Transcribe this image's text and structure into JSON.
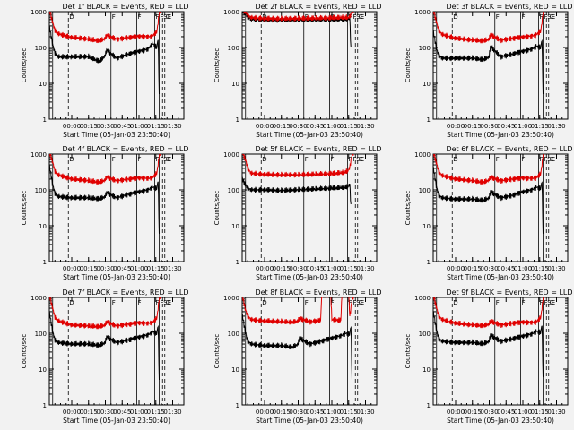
{
  "figure": {
    "background": "#f2f2f2",
    "series_colors": {
      "events": "#000000",
      "lld": "#e00000"
    }
  },
  "chart_data": [
    {
      "type": "line",
      "title": "Det 1f BLACK = Events, RED = LLD",
      "xlabel": "Start Time (05-Jan-03 23:50:40)",
      "ylabel": "Counts/sec",
      "yscale": "log",
      "ylim": [
        1,
        1000
      ],
      "xlim_minutes": [
        -20,
        100
      ],
      "xtick_minutes": [
        0,
        15,
        30,
        45,
        60,
        75,
        90
      ],
      "xtick_labels": [
        "00:00",
        "00:15",
        "00:30",
        "00:45",
        "01:00",
        "01:15",
        "01:30"
      ],
      "ytick_labels": [
        "1",
        "10",
        "100",
        "1000"
      ],
      "markers": [
        "D",
        "F",
        "F",
        "F",
        "F",
        "SE",
        "C"
      ],
      "series": [
        {
          "name": "Events",
          "color": "#000000",
          "x": [
            -20,
            -17,
            -15,
            -12,
            0,
            15,
            25,
            30,
            31,
            40,
            50,
            60,
            68,
            72,
            76,
            77,
            78
          ],
          "y": [
            400,
            120,
            70,
            55,
            55,
            55,
            40,
            60,
            85,
            50,
            65,
            80,
            90,
            130,
            100,
            180,
            5
          ]
        },
        {
          "name": "LLD",
          "color": "#e00000",
          "x": [
            -20,
            -17,
            -15,
            -12,
            0,
            15,
            25,
            30,
            31,
            40,
            50,
            60,
            68,
            72,
            76,
            78,
            80
          ],
          "y": [
            1200,
            500,
            300,
            240,
            190,
            170,
            150,
            180,
            220,
            170,
            190,
            210,
            200,
            210,
            280,
            900,
            1200
          ]
        }
      ]
    },
    {
      "type": "line",
      "title": "Det 2f BLACK = Events, RED = LLD",
      "xlabel": "Start Time (05-Jan-03 23:50:40)",
      "ylabel": "Counts/sec",
      "yscale": "log",
      "ylim": [
        1,
        1000
      ],
      "xlim_minutes": [
        -20,
        100
      ],
      "xtick_minutes": [
        0,
        15,
        30,
        45,
        60,
        75,
        90
      ],
      "xtick_labels": [
        "00:00",
        "00:15",
        "00:30",
        "00:45",
        "01:00",
        "01:15",
        "01:30"
      ],
      "ytick_labels": [
        "1",
        "10",
        "100",
        "1000"
      ],
      "markers": [
        "D",
        "F",
        "F",
        "F",
        "F",
        "SE",
        "C"
      ],
      "series": [
        {
          "name": "Events",
          "color": "#000000",
          "x": [
            -20,
            -17,
            -15,
            -12,
            0,
            15,
            30,
            45,
            60,
            70,
            74,
            76,
            77
          ],
          "y": [
            1100,
            900,
            700,
            620,
            590,
            580,
            590,
            600,
            600,
            610,
            620,
            650,
            100
          ]
        },
        {
          "name": "LLD",
          "color": "#e00000",
          "x": [
            -20,
            -17,
            -15,
            -12,
            0,
            15,
            30,
            45,
            60,
            70,
            74,
            76,
            78,
            80
          ],
          "y": [
            1200,
            1000,
            800,
            680,
            640,
            630,
            640,
            650,
            660,
            680,
            680,
            720,
            1000,
            1200
          ]
        }
      ]
    },
    {
      "type": "line",
      "title": "Det 3f BLACK = Events, RED = LLD",
      "xlabel": "Start Time (05-Jan-03 23:50:40)",
      "ylabel": "Counts/sec",
      "yscale": "log",
      "ylim": [
        1,
        1000
      ],
      "xlim_minutes": [
        -20,
        100
      ],
      "xtick_minutes": [
        0,
        15,
        30,
        45,
        60,
        75,
        90
      ],
      "xtick_labels": [
        "00:00",
        "00:15",
        "00:30",
        "00:45",
        "01:00",
        "01:15",
        "01:30"
      ],
      "ytick_labels": [
        "1",
        "10",
        "100",
        "1000"
      ],
      "markers": [
        "D",
        "F",
        "F",
        "F",
        "F",
        "SE",
        "C"
      ],
      "series": [
        {
          "name": "Events",
          "color": "#000000",
          "x": [
            -20,
            -17,
            -15,
            -12,
            0,
            15,
            25,
            30,
            31,
            40,
            50,
            60,
            68,
            72,
            76,
            77,
            78
          ],
          "y": [
            300,
            90,
            60,
            50,
            50,
            50,
            45,
            55,
            110,
            55,
            65,
            80,
            90,
            110,
            100,
            170,
            5
          ]
        },
        {
          "name": "LLD",
          "color": "#e00000",
          "x": [
            -20,
            -17,
            -15,
            -12,
            0,
            15,
            25,
            30,
            31,
            40,
            50,
            60,
            68,
            72,
            76,
            78,
            80
          ],
          "y": [
            1200,
            500,
            300,
            230,
            180,
            160,
            150,
            170,
            230,
            160,
            180,
            200,
            210,
            230,
            290,
            900,
            1200
          ]
        }
      ]
    },
    {
      "type": "line",
      "title": "Det 4f BLACK = Events, RED = LLD",
      "xlabel": "Start Time (05-Jan-03 23:50:40)",
      "ylabel": "Counts/sec",
      "yscale": "log",
      "ylim": [
        1,
        1000
      ],
      "xlim_minutes": [
        -20,
        100
      ],
      "xtick_minutes": [
        0,
        15,
        30,
        45,
        60,
        75,
        90
      ],
      "xtick_labels": [
        "00:00",
        "00:15",
        "00:30",
        "00:45",
        "01:00",
        "01:15",
        "01:30"
      ],
      "ytick_labels": [
        "1",
        "10",
        "100",
        "1000"
      ],
      "markers": [
        "D",
        "F",
        "F",
        "F",
        "F",
        "SE",
        "C"
      ],
      "series": [
        {
          "name": "Events",
          "color": "#000000",
          "x": [
            -20,
            -17,
            -15,
            -12,
            0,
            15,
            25,
            30,
            31,
            40,
            50,
            60,
            68,
            72,
            76,
            77,
            78
          ],
          "y": [
            500,
            140,
            80,
            65,
            60,
            60,
            55,
            65,
            85,
            60,
            75,
            90,
            100,
            120,
            110,
            190,
            6
          ]
        },
        {
          "name": "LLD",
          "color": "#e00000",
          "x": [
            -20,
            -17,
            -15,
            -12,
            0,
            15,
            25,
            30,
            31,
            40,
            50,
            60,
            68,
            72,
            76,
            78,
            80
          ],
          "y": [
            1200,
            600,
            330,
            260,
            200,
            180,
            160,
            190,
            230,
            180,
            200,
            220,
            210,
            220,
            300,
            900,
            1200
          ]
        }
      ]
    },
    {
      "type": "line",
      "title": "Det 5f BLACK = Events, RED = LLD",
      "xlabel": "Start Time (05-Jan-03 23:50:40)",
      "ylabel": "Counts/sec",
      "yscale": "log",
      "ylim": [
        1,
        1000
      ],
      "xlim_minutes": [
        -20,
        100
      ],
      "xtick_minutes": [
        0,
        15,
        30,
        45,
        60,
        75,
        90
      ],
      "xtick_labels": [
        "00:00",
        "00:15",
        "00:30",
        "00:45",
        "01:00",
        "01:15",
        "01:30"
      ],
      "ytick_labels": [
        "1",
        "10",
        "100",
        "1000"
      ],
      "markers": [
        "D",
        "F",
        "F",
        "F",
        "F",
        "SE",
        "C"
      ],
      "series": [
        {
          "name": "Events",
          "color": "#000000",
          "x": [
            -20,
            -17,
            -15,
            -12,
            0,
            15,
            30,
            45,
            60,
            70,
            74,
            76,
            77
          ],
          "y": [
            200,
            140,
            110,
            100,
            100,
            95,
            100,
            105,
            110,
            115,
            120,
            140,
            40
          ]
        },
        {
          "name": "LLD",
          "color": "#e00000",
          "x": [
            -20,
            -17,
            -15,
            -12,
            0,
            15,
            30,
            45,
            60,
            70,
            74,
            76,
            78,
            80
          ],
          "y": [
            1200,
            700,
            400,
            290,
            270,
            260,
            260,
            270,
            280,
            300,
            330,
            420,
            1000,
            1200
          ]
        }
      ]
    },
    {
      "type": "line",
      "title": "Det 6f BLACK = Events, RED = LLD",
      "xlabel": "Start Time (05-Jan-03 23:50:40)",
      "ylabel": "Counts/sec",
      "yscale": "log",
      "ylim": [
        1,
        1000
      ],
      "xlim_minutes": [
        -20,
        100
      ],
      "xtick_minutes": [
        0,
        15,
        30,
        45,
        60,
        75,
        90
      ],
      "xtick_labels": [
        "00:00",
        "00:15",
        "00:30",
        "00:45",
        "01:00",
        "01:15",
        "01:30"
      ],
      "ytick_labels": [
        "1",
        "10",
        "100",
        "1000"
      ],
      "markers": [
        "D",
        "F",
        "F",
        "F",
        "F",
        "SE",
        "C"
      ],
      "series": [
        {
          "name": "Events",
          "color": "#000000",
          "x": [
            -20,
            -17,
            -15,
            -12,
            0,
            15,
            25,
            30,
            31,
            40,
            50,
            60,
            68,
            72,
            76,
            77,
            78
          ],
          "y": [
            450,
            120,
            70,
            60,
            55,
            55,
            50,
            60,
            90,
            60,
            70,
            90,
            100,
            120,
            110,
            180,
            6
          ]
        },
        {
          "name": "LLD",
          "color": "#e00000",
          "x": [
            -20,
            -17,
            -15,
            -12,
            0,
            15,
            25,
            30,
            31,
            40,
            50,
            60,
            68,
            72,
            76,
            78,
            80
          ],
          "y": [
            1200,
            550,
            320,
            250,
            200,
            180,
            160,
            190,
            230,
            180,
            200,
            220,
            210,
            220,
            290,
            900,
            1200
          ]
        }
      ]
    },
    {
      "type": "line",
      "title": "Det 7f BLACK = Events, RED = LLD",
      "xlabel": "Start Time (05-Jan-03 23:50:40)",
      "ylabel": "Counts/sec",
      "yscale": "log",
      "ylim": [
        1,
        1000
      ],
      "xlim_minutes": [
        -20,
        100
      ],
      "xtick_minutes": [
        0,
        15,
        30,
        45,
        60,
        75,
        90
      ],
      "xtick_labels": [
        "00:00",
        "00:15",
        "00:30",
        "00:45",
        "01:00",
        "01:15",
        "01:30"
      ],
      "ytick_labels": [
        "1",
        "10",
        "100",
        "1000"
      ],
      "markers": [
        "D",
        "F",
        "F",
        "F",
        "F",
        "SE",
        "C"
      ],
      "series": [
        {
          "name": "Events",
          "color": "#000000",
          "x": [
            -20,
            -17,
            -15,
            -12,
            0,
            15,
            25,
            30,
            31,
            40,
            50,
            60,
            68,
            72,
            76,
            77,
            78
          ],
          "y": [
            400,
            110,
            65,
            55,
            50,
            50,
            45,
            55,
            80,
            55,
            65,
            80,
            90,
            110,
            100,
            170,
            5
          ]
        },
        {
          "name": "LLD",
          "color": "#e00000",
          "x": [
            -20,
            -17,
            -15,
            -12,
            0,
            15,
            25,
            30,
            31,
            40,
            50,
            60,
            68,
            72,
            76,
            78,
            80
          ],
          "y": [
            1200,
            500,
            280,
            220,
            170,
            160,
            150,
            170,
            210,
            160,
            180,
            200,
            190,
            200,
            270,
            900,
            1200
          ]
        }
      ]
    },
    {
      "type": "line",
      "title": "Det 8f BLACK = Events, RED = LLD",
      "xlabel": "Start Time (05-Jan-03 23:50:40)",
      "ylabel": "Counts/sec",
      "yscale": "log",
      "ylim": [
        1,
        1000
      ],
      "xlim_minutes": [
        -20,
        100
      ],
      "xtick_minutes": [
        0,
        15,
        30,
        45,
        60,
        75,
        90
      ],
      "xtick_labels": [
        "00:00",
        "00:15",
        "00:30",
        "00:45",
        "01:00",
        "01:15",
        "01:30"
      ],
      "ytick_labels": [
        "1",
        "10",
        "100",
        "1000"
      ],
      "markers": [
        "D",
        "F",
        "F",
        "F",
        "F",
        "SE",
        "C"
      ],
      "series": [
        {
          "name": "Events",
          "color": "#000000",
          "x": [
            -20,
            -17,
            -15,
            -12,
            0,
            15,
            25,
            30,
            31,
            40,
            50,
            60,
            68,
            72,
            76,
            77,
            78
          ],
          "y": [
            350,
            100,
            60,
            50,
            45,
            45,
            40,
            50,
            75,
            50,
            60,
            75,
            85,
            100,
            95,
            160,
            5
          ]
        },
        {
          "name": "LLD",
          "color": "#e00000",
          "x": [
            -20,
            -17,
            -15,
            -12,
            0,
            15,
            25,
            30,
            31,
            40,
            50,
            51,
            59,
            60,
            68,
            69,
            75,
            76,
            78,
            80
          ],
          "y": [
            1200,
            450,
            300,
            240,
            220,
            210,
            200,
            220,
            260,
            210,
            230,
            1200,
            1200,
            240,
            230,
            1200,
            1200,
            290,
            900,
            1200
          ]
        }
      ]
    },
    {
      "type": "line",
      "title": "Det 9f BLACK = Events, RED = LLD",
      "xlabel": "Start Time (05-Jan-03 23:50:40)",
      "ylabel": "Counts/sec",
      "yscale": "log",
      "ylim": [
        1,
        1000
      ],
      "xlim_minutes": [
        -20,
        100
      ],
      "xtick_minutes": [
        0,
        15,
        30,
        45,
        60,
        75,
        90
      ],
      "xtick_labels": [
        "00:00",
        "00:15",
        "00:30",
        "00:45",
        "01:00",
        "01:15",
        "01:30"
      ],
      "ytick_labels": [
        "1",
        "10",
        "100",
        "1000"
      ],
      "markers": [
        "D",
        "F",
        "F",
        "F",
        "F",
        "SE",
        "C"
      ],
      "series": [
        {
          "name": "Events",
          "color": "#000000",
          "x": [
            -20,
            -17,
            -15,
            -12,
            0,
            15,
            25,
            30,
            31,
            40,
            50,
            60,
            68,
            72,
            76,
            77,
            78
          ],
          "y": [
            420,
            120,
            70,
            60,
            55,
            55,
            50,
            60,
            90,
            60,
            70,
            85,
            95,
            115,
            105,
            180,
            6
          ]
        },
        {
          "name": "LLD",
          "color": "#e00000",
          "x": [
            -20,
            -17,
            -15,
            -12,
            0,
            15,
            25,
            30,
            31,
            40,
            50,
            60,
            68,
            72,
            76,
            78,
            80
          ],
          "y": [
            1200,
            520,
            300,
            240,
            190,
            170,
            160,
            180,
            220,
            170,
            190,
            210,
            200,
            210,
            280,
            900,
            1200
          ]
        }
      ]
    }
  ]
}
